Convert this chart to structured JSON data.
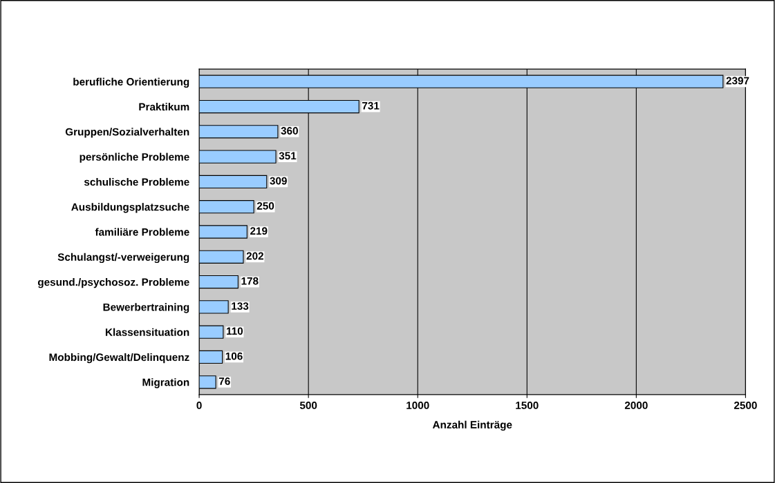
{
  "chart_data": {
    "type": "bar",
    "orientation": "horizontal",
    "xlabel": "Anzahl Einträge",
    "categories": [
      "berufliche Orientierung",
      "Praktikum",
      "Gruppen/Sozialverhalten",
      "persönliche Probleme",
      "schulische Probleme",
      "Ausbildungsplatzsuche",
      "familiäre Probleme",
      "Schulangst/-verweigerung",
      "gesund./psychosoz. Probleme",
      "Bewerbertraining",
      "Klassensituation",
      "Mobbing/Gewalt/Delinquenz",
      "Migration"
    ],
    "values": [
      2397,
      731,
      360,
      351,
      309,
      250,
      219,
      202,
      178,
      133,
      110,
      106,
      76
    ],
    "color": "#99ccff",
    "xlim": [
      0,
      2500
    ],
    "xticks": [
      0,
      500,
      1000,
      1500,
      2000,
      2500
    ],
    "grid": "x",
    "data_labels": true
  }
}
